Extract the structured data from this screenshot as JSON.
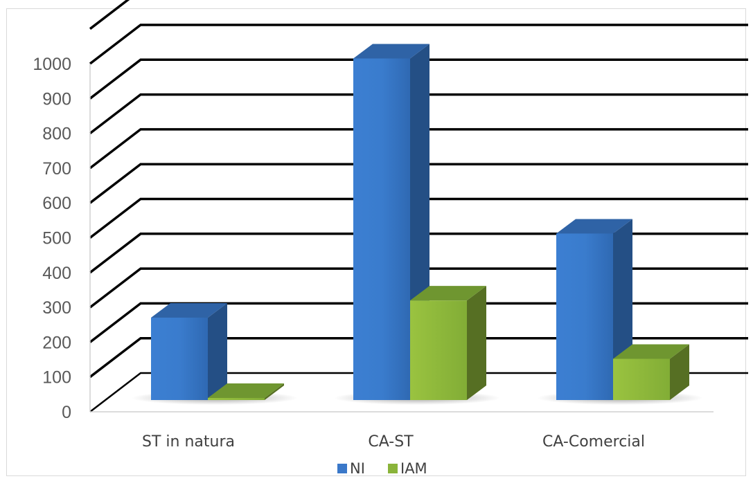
{
  "chart_data": {
    "type": "bar",
    "title": "",
    "xlabel": "",
    "ylabel": "",
    "categories": [
      "ST in natura",
      "CA-ST",
      "CA-Comercial"
    ],
    "series": [
      {
        "name": "NI",
        "values": [
          240,
          995,
          485
        ],
        "color": "#3a78c9"
      },
      {
        "name": "IAM",
        "values": [
          5,
          290,
          120
        ],
        "color": "#8ab43a"
      }
    ],
    "y_ticks": [
      "0",
      "100",
      "200",
      "300",
      "400",
      "500",
      "600",
      "700",
      "800",
      "900",
      "1000"
    ],
    "ylim": [
      0,
      1000
    ],
    "grid": true,
    "legend_position": "bottom",
    "three_d": true
  }
}
